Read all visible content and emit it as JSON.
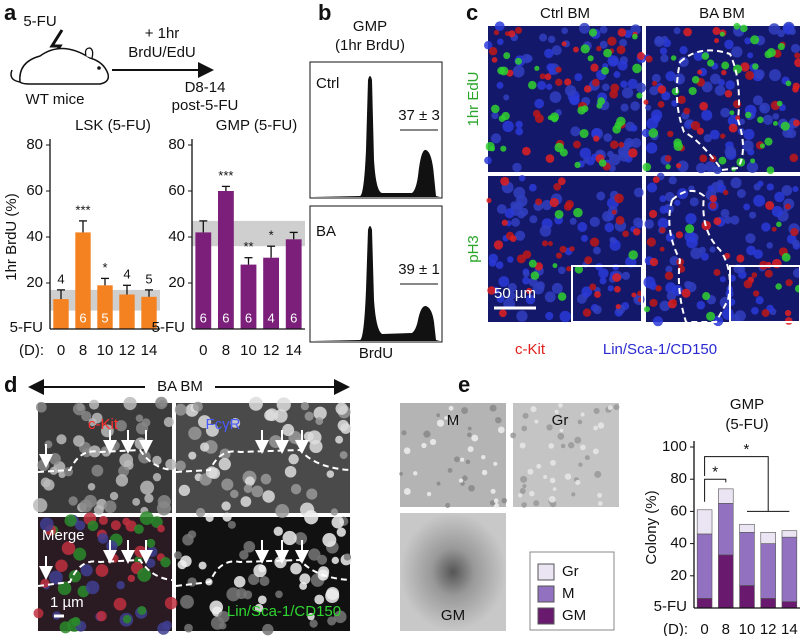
{
  "panel_labels": [
    "a",
    "b",
    "c",
    "d",
    "e"
  ],
  "panel_a": {
    "drug": "5-FU",
    "pulse_1": "+ 1hr",
    "pulse_2": "BrdU/EdU",
    "mouse": "WT mice",
    "time_1": "D8-14",
    "time_2": "post-5-FU"
  },
  "panel_b": {
    "title_1": "GMP",
    "title_2": "(1hr BrdU)",
    "ctrl": "Ctrl",
    "ctrl_value": "37 ± 3",
    "ba": "BA",
    "ba_value": "39 ± 1",
    "x_label": "BrdU"
  },
  "panel_c": {
    "col_1": "Ctrl BM",
    "col_2": "BA BM",
    "row_1": "1hr EdU",
    "row_2": "pH3",
    "scale": "50 µm",
    "legend_red": "c-Kit",
    "legend_blue": "Lin/Sca-1/CD150"
  },
  "panel_d": {
    "title": "BA BM",
    "ckit": "c-Kit",
    "fcgr": "FcγR",
    "merge": "Merge",
    "scale": "1 µm",
    "lin": "Lin/Sca-1/CD150"
  },
  "panel_e": {
    "m": "M",
    "gr": "Gr",
    "gm": "GM"
  },
  "chart_data": [
    {
      "type": "bar",
      "title": "LSK (5-FU)",
      "y_label": "1hr BrdU (%)",
      "x_label": "(D):",
      "row_label": "5-FU",
      "categories": [
        "0",
        "8",
        "10",
        "12",
        "14"
      ],
      "values": [
        13,
        42,
        19,
        15,
        14
      ],
      "errors": [
        4,
        5,
        3,
        4,
        3
      ],
      "color": "#f58220",
      "ylim": [
        0,
        80
      ],
      "yticks": [
        20,
        40,
        60,
        80
      ],
      "band": [
        8,
        17
      ],
      "annotations_above": [
        "4",
        "***",
        "*",
        "4",
        "5"
      ],
      "annotations_inside": [
        null,
        "6",
        "5",
        null,
        null
      ]
    },
    {
      "type": "bar",
      "title": "GMP (5-FU)",
      "x_label": "(D):",
      "row_label": "5-FU",
      "categories": [
        "0",
        "8",
        "10",
        "12",
        "14"
      ],
      "values": [
        42,
        60,
        28,
        31,
        39
      ],
      "errors": [
        5,
        2,
        3,
        5,
        3
      ],
      "color": "#7b1f7b",
      "ylim": [
        0,
        80
      ],
      "yticks": [
        20,
        40,
        60,
        80
      ],
      "band": [
        36,
        47
      ],
      "annotations_above": [
        null,
        "***",
        "**",
        "*",
        null
      ],
      "annotations_inside": [
        "6",
        "6",
        "6",
        "4",
        "6"
      ]
    },
    {
      "type": "stacked_bar",
      "title": "GMP",
      "subtitle": "(5-FU)",
      "y_label": "Colony (%)",
      "x_label": "(D):",
      "row_label": "5-FU",
      "categories": [
        "0",
        "8",
        "10",
        "12",
        "14"
      ],
      "ylim": [
        0,
        100
      ],
      "yticks": [
        20,
        40,
        60,
        80,
        100
      ],
      "series": [
        {
          "name": "GM",
          "color": "#6a1a6e",
          "values": [
            6,
            33,
            14,
            6,
            4
          ]
        },
        {
          "name": "M",
          "color": "#9272c0",
          "values": [
            40,
            32,
            33,
            34,
            40
          ]
        },
        {
          "name": "Gr",
          "color": "#ebe4f3",
          "values": [
            15,
            9,
            5,
            7,
            4
          ]
        }
      ],
      "significance": [
        "*",
        "*"
      ]
    }
  ]
}
